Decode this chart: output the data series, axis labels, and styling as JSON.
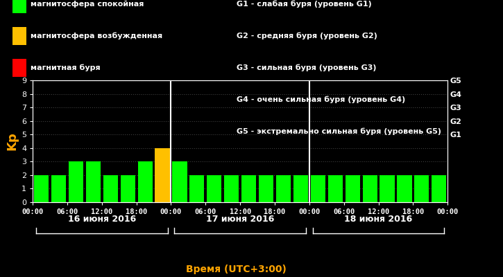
{
  "background_color": "#000000",
  "plot_bg_color": "#000000",
  "text_color": "#ffffff",
  "orange_color": "#ffa500",
  "green_color": "#00ff00",
  "yellow_color": "#ffc000",
  "red_color": "#ff0000",
  "legend_left": [
    [
      "магнитосфера спокойная",
      "#00ff00"
    ],
    [
      "магнитосфера возбужденная",
      "#ffc000"
    ],
    [
      "магнитная буря",
      "#ff0000"
    ]
  ],
  "legend_right": [
    "G1 - слабая буря (уровень G1)",
    "G2 - средняя буря (уровень G2)",
    "G3 - сильная буря (уровень G3)",
    "G4 - очень сильная буря (уровень G4)",
    "G5 - экстремально сильная буря (уровень G5)"
  ],
  "ylabel": "Kp",
  "xlabel": "Время (UTC+3:00)",
  "ylim": [
    0,
    9
  ],
  "yticks": [
    0,
    1,
    2,
    3,
    4,
    5,
    6,
    7,
    8,
    9
  ],
  "day_labels": [
    "16 июня 2016",
    "17 июня 2016",
    "18 июня 2016"
  ],
  "right_axis_labels": [
    "G1",
    "G2",
    "G3",
    "G4",
    "G5"
  ],
  "right_axis_positions": [
    5,
    6,
    7,
    8,
    9
  ],
  "bar_values": [
    2,
    2,
    3,
    3,
    2,
    2,
    3,
    4,
    3,
    2,
    2,
    2,
    2,
    2,
    2,
    2,
    2,
    2,
    2,
    2,
    2,
    2,
    2,
    2
  ],
  "bar_colors": [
    "#00ff00",
    "#00ff00",
    "#00ff00",
    "#00ff00",
    "#00ff00",
    "#00ff00",
    "#00ff00",
    "#ffc000",
    "#00ff00",
    "#00ff00",
    "#00ff00",
    "#00ff00",
    "#00ff00",
    "#00ff00",
    "#00ff00",
    "#00ff00",
    "#00ff00",
    "#00ff00",
    "#00ff00",
    "#00ff00",
    "#00ff00",
    "#00ff00",
    "#00ff00",
    "#00ff00"
  ],
  "xtick_labels": [
    "00:00",
    "06:00",
    "12:00",
    "18:00",
    "00:00",
    "06:00",
    "12:00",
    "18:00",
    "00:00",
    "06:00",
    "12:00",
    "18:00",
    "00:00"
  ],
  "grid_color": "#ffffff",
  "grid_alpha": 0.25,
  "grid_linestyle": ":",
  "grid_linewidth": 0.8,
  "bar_width": 0.85,
  "figsize": [
    7.25,
    4.0
  ],
  "dpi": 100
}
